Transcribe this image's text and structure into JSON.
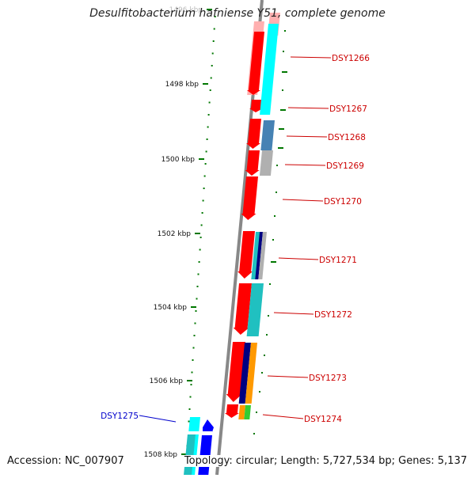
{
  "title": "Desulfitobacterium hafniense Y51, complete genome",
  "accession": "Accession: NC_007907",
  "summary": "Topology: circular; Length: 5,727,534 bp; Genes: 5,137",
  "colors": {
    "red": "#ff0000",
    "cyan": "#00ffff",
    "teal": "#20c0c0",
    "steelblue": "#4682b4",
    "gray": "#b0b0b0",
    "navy": "#000080",
    "orange": "#ff9900",
    "green": "#33cc33",
    "blue": "#0000ff",
    "pink": "#ffb0b0",
    "tick_green": "#007700",
    "label_red": "#cc0000",
    "label_blue": "#0000cc"
  },
  "scale_ticks": [
    {
      "label": "1496 kbp"
    },
    {
      "label": "1498 kbp"
    },
    {
      "label": "1500 kbp"
    },
    {
      "label": "1502 kbp"
    },
    {
      "label": "1504 kbp"
    },
    {
      "label": "1506 kbp"
    },
    {
      "label": "1508 kbp"
    }
  ],
  "gene_labels": [
    {
      "label": "DSY1266",
      "color": "red"
    },
    {
      "label": "DSY1267",
      "color": "red"
    },
    {
      "label": "DSY1268",
      "color": "red"
    },
    {
      "label": "DSY1269",
      "color": "red"
    },
    {
      "label": "DSY1270",
      "color": "red"
    },
    {
      "label": "DSY1271",
      "color": "red"
    },
    {
      "label": "DSY1272",
      "color": "red"
    },
    {
      "label": "DSY1273",
      "color": "red"
    },
    {
      "label": "DSY1274",
      "color": "red"
    },
    {
      "label": "DSY1275",
      "color": "blue"
    }
  ]
}
